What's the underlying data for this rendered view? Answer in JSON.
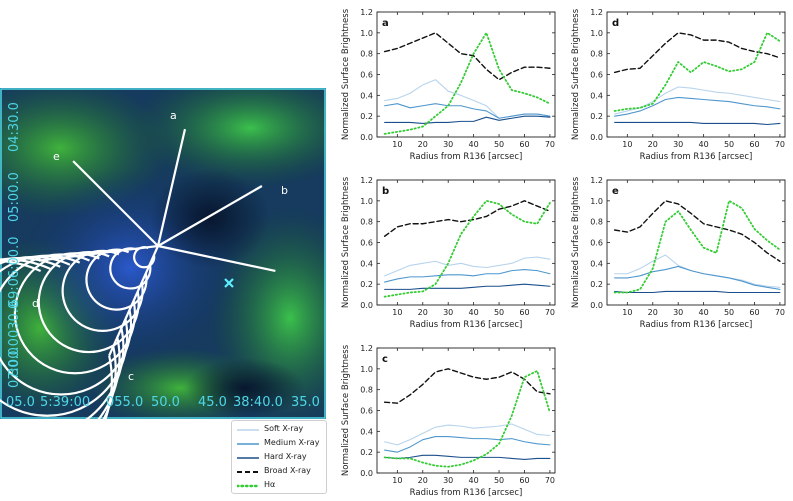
{
  "image_panel": {
    "ra_labels": [
      "05.0",
      "5:39:00",
      "055.0",
      "50.0",
      "45.0",
      "38:40.0",
      "35.0"
    ],
    "dec_labels": [
      "04:30.0",
      "05:00.0",
      "-69:06:00.0",
      "030.0",
      "30.0",
      "07:00.0"
    ],
    "segment_labels": [
      "a",
      "b",
      "c",
      "d",
      "e"
    ],
    "marker": "x-marker"
  },
  "legend": {
    "items": [
      {
        "label": "Soft X-ray",
        "color": "#b8d4ec",
        "style": "solid"
      },
      {
        "label": "Medium X-ray",
        "color": "#4f97cd",
        "style": "solid"
      },
      {
        "label": "Hard X-ray",
        "color": "#1b4f8c",
        "style": "solid"
      },
      {
        "label": "Broad X-ray",
        "color": "#111111",
        "style": "dashed"
      },
      {
        "label": "Hα",
        "color": "#33cc33",
        "style": "dotted"
      }
    ]
  },
  "chart_data": [
    {
      "type": "line",
      "panel": "a",
      "xlabel": "Radius from R136 [arcsec]",
      "ylabel": "Normalized Surface Brightness",
      "xlim": [
        2,
        72
      ],
      "ylim": [
        0,
        1.2
      ],
      "x_ticks": [
        10,
        20,
        30,
        40,
        50,
        60,
        70
      ],
      "y_ticks": [
        "0.0",
        "0.2",
        "0.4",
        "0.6",
        "0.8",
        "1.0",
        "1.2"
      ],
      "x": [
        5,
        10,
        15,
        20,
        25,
        30,
        35,
        40,
        45,
        50,
        55,
        60,
        65,
        70
      ],
      "series": [
        {
          "name": "Soft X-ray",
          "values": [
            0.35,
            0.37,
            0.42,
            0.5,
            0.55,
            0.44,
            0.4,
            0.35,
            0.3,
            0.18,
            0.2,
            0.22,
            0.22,
            0.2
          ]
        },
        {
          "name": "Medium X-ray",
          "values": [
            0.3,
            0.32,
            0.28,
            0.3,
            0.32,
            0.3,
            0.3,
            0.27,
            0.25,
            0.18,
            0.2,
            0.22,
            0.22,
            0.2
          ]
        },
        {
          "name": "Hard X-ray",
          "values": [
            0.14,
            0.14,
            0.14,
            0.13,
            0.14,
            0.14,
            0.15,
            0.15,
            0.19,
            0.16,
            0.18,
            0.2,
            0.2,
            0.19
          ]
        },
        {
          "name": "Broad X-ray",
          "values": [
            0.82,
            0.85,
            0.9,
            0.95,
            1.0,
            0.9,
            0.8,
            0.78,
            0.65,
            0.55,
            0.62,
            0.67,
            0.67,
            0.66
          ]
        },
        {
          "name": "Hα",
          "values": [
            0.03,
            0.05,
            0.07,
            0.1,
            0.2,
            0.3,
            0.52,
            0.8,
            1.0,
            0.65,
            0.45,
            0.42,
            0.38,
            0.32
          ]
        }
      ]
    },
    {
      "type": "line",
      "panel": "b",
      "xlabel": "Radius from R136 [arcsec]",
      "ylabel": "Normalized Surface Brightness",
      "xlim": [
        2,
        72
      ],
      "ylim": [
        0,
        1.2
      ],
      "x_ticks": [
        10,
        20,
        30,
        40,
        50,
        60,
        70
      ],
      "y_ticks": [
        "0.0",
        "0.2",
        "0.4",
        "0.6",
        "0.8",
        "1.0",
        "1.2"
      ],
      "x": [
        5,
        10,
        15,
        20,
        25,
        30,
        35,
        40,
        45,
        50,
        55,
        60,
        65,
        70
      ],
      "series": [
        {
          "name": "Soft X-ray",
          "values": [
            0.28,
            0.33,
            0.38,
            0.4,
            0.42,
            0.38,
            0.4,
            0.37,
            0.36,
            0.38,
            0.4,
            0.45,
            0.46,
            0.44
          ]
        },
        {
          "name": "Medium X-ray",
          "values": [
            0.22,
            0.25,
            0.27,
            0.27,
            0.28,
            0.29,
            0.29,
            0.28,
            0.3,
            0.3,
            0.33,
            0.34,
            0.33,
            0.3
          ]
        },
        {
          "name": "Hard X-ray",
          "values": [
            0.15,
            0.15,
            0.15,
            0.16,
            0.16,
            0.16,
            0.16,
            0.17,
            0.18,
            0.18,
            0.19,
            0.2,
            0.19,
            0.18
          ]
        },
        {
          "name": "Broad X-ray",
          "values": [
            0.66,
            0.75,
            0.78,
            0.78,
            0.8,
            0.82,
            0.8,
            0.82,
            0.85,
            0.92,
            0.95,
            1.0,
            0.95,
            0.9
          ]
        },
        {
          "name": "Hα",
          "values": [
            0.08,
            0.1,
            0.12,
            0.13,
            0.2,
            0.4,
            0.68,
            0.85,
            1.0,
            0.97,
            0.87,
            0.8,
            0.78,
            0.98
          ]
        }
      ]
    },
    {
      "type": "line",
      "panel": "c",
      "xlabel": "Radius from R136 [arcsec]",
      "ylabel": "Normalized Surface Brightness",
      "xlim": [
        2,
        72
      ],
      "ylim": [
        0,
        1.2
      ],
      "x_ticks": [
        10,
        20,
        30,
        40,
        50,
        60,
        70
      ],
      "y_ticks": [
        "0.0",
        "0.2",
        "0.4",
        "0.6",
        "0.8",
        "1.0",
        "1.2"
      ],
      "x": [
        5,
        10,
        15,
        20,
        25,
        30,
        35,
        40,
        45,
        50,
        55,
        60,
        65,
        70
      ],
      "series": [
        {
          "name": "Soft X-ray",
          "values": [
            0.3,
            0.27,
            0.32,
            0.38,
            0.44,
            0.46,
            0.45,
            0.43,
            0.44,
            0.45,
            0.47,
            0.42,
            0.37,
            0.36
          ]
        },
        {
          "name": "Medium X-ray",
          "values": [
            0.22,
            0.2,
            0.25,
            0.32,
            0.35,
            0.35,
            0.34,
            0.33,
            0.33,
            0.32,
            0.33,
            0.3,
            0.28,
            0.27
          ]
        },
        {
          "name": "Hard X-ray",
          "values": [
            0.15,
            0.14,
            0.15,
            0.17,
            0.17,
            0.16,
            0.15,
            0.15,
            0.15,
            0.15,
            0.14,
            0.13,
            0.14,
            0.14
          ]
        },
        {
          "name": "Broad X-ray",
          "values": [
            0.68,
            0.67,
            0.75,
            0.85,
            0.97,
            1.0,
            0.96,
            0.92,
            0.9,
            0.92,
            0.97,
            0.9,
            0.78,
            0.76
          ]
        },
        {
          "name": "Hα",
          "values": [
            0.15,
            0.14,
            0.14,
            0.1,
            0.07,
            0.06,
            0.08,
            0.12,
            0.18,
            0.28,
            0.55,
            0.92,
            0.98,
            0.58
          ]
        }
      ]
    },
    {
      "type": "line",
      "panel": "d",
      "xlabel": "Radius from R136 [arcsec]",
      "ylabel": "Normalized Surface Brightness",
      "xlim": [
        2,
        72
      ],
      "ylim": [
        0,
        1.2
      ],
      "x_ticks": [
        10,
        20,
        30,
        40,
        50,
        60,
        70
      ],
      "y_ticks": [
        "0.0",
        "0.2",
        "0.4",
        "0.6",
        "0.8",
        "1.0",
        "1.2"
      ],
      "x": [
        5,
        10,
        15,
        20,
        25,
        30,
        35,
        40,
        45,
        50,
        55,
        60,
        65,
        70
      ],
      "series": [
        {
          "name": "Soft X-ray",
          "values": [
            0.22,
            0.25,
            0.28,
            0.34,
            0.42,
            0.48,
            0.47,
            0.45,
            0.43,
            0.42,
            0.4,
            0.38,
            0.36,
            0.34
          ]
        },
        {
          "name": "Medium X-ray",
          "values": [
            0.2,
            0.22,
            0.25,
            0.3,
            0.36,
            0.38,
            0.37,
            0.36,
            0.35,
            0.34,
            0.32,
            0.3,
            0.29,
            0.27
          ]
        },
        {
          "name": "Hard X-ray",
          "values": [
            0.14,
            0.14,
            0.14,
            0.14,
            0.14,
            0.14,
            0.14,
            0.13,
            0.13,
            0.13,
            0.13,
            0.13,
            0.12,
            0.13
          ]
        },
        {
          "name": "Broad X-ray",
          "values": [
            0.62,
            0.65,
            0.66,
            0.78,
            0.9,
            1.0,
            0.98,
            0.93,
            0.93,
            0.91,
            0.85,
            0.82,
            0.8,
            0.76
          ]
        },
        {
          "name": "Hα",
          "values": [
            0.25,
            0.27,
            0.28,
            0.32,
            0.5,
            0.72,
            0.62,
            0.72,
            0.68,
            0.63,
            0.65,
            0.72,
            1.0,
            0.92
          ]
        }
      ]
    },
    {
      "type": "line",
      "panel": "e",
      "xlabel": "Radius from R136 [arcsec]",
      "ylabel": "Normalized Surface Brightness",
      "xlim": [
        2,
        72
      ],
      "ylim": [
        0,
        1.2
      ],
      "x_ticks": [
        10,
        20,
        30,
        40,
        50,
        60,
        70
      ],
      "y_ticks": [
        "0.0",
        "0.2",
        "0.4",
        "0.6",
        "0.8",
        "1.0",
        "1.2"
      ],
      "x": [
        5,
        10,
        15,
        20,
        25,
        30,
        35,
        40,
        45,
        50,
        55,
        60,
        65,
        70
      ],
      "series": [
        {
          "name": "Soft X-ray",
          "values": [
            0.3,
            0.3,
            0.35,
            0.42,
            0.48,
            0.38,
            0.33,
            0.3,
            0.28,
            0.26,
            0.24,
            0.2,
            0.18,
            0.17
          ]
        },
        {
          "name": "Medium X-ray",
          "values": [
            0.26,
            0.26,
            0.28,
            0.32,
            0.34,
            0.37,
            0.33,
            0.3,
            0.28,
            0.26,
            0.23,
            0.19,
            0.17,
            0.15
          ]
        },
        {
          "name": "Hard X-ray",
          "values": [
            0.13,
            0.12,
            0.12,
            0.12,
            0.13,
            0.13,
            0.13,
            0.13,
            0.13,
            0.12,
            0.12,
            0.12,
            0.12,
            0.12
          ]
        },
        {
          "name": "Broad X-ray",
          "values": [
            0.72,
            0.7,
            0.75,
            0.88,
            1.0,
            0.97,
            0.88,
            0.78,
            0.75,
            0.72,
            0.68,
            0.6,
            0.5,
            0.42
          ]
        },
        {
          "name": "Hα",
          "values": [
            0.12,
            0.12,
            0.15,
            0.35,
            0.8,
            0.9,
            0.72,
            0.55,
            0.5,
            1.0,
            0.93,
            0.73,
            0.62,
            0.53
          ]
        }
      ]
    }
  ]
}
